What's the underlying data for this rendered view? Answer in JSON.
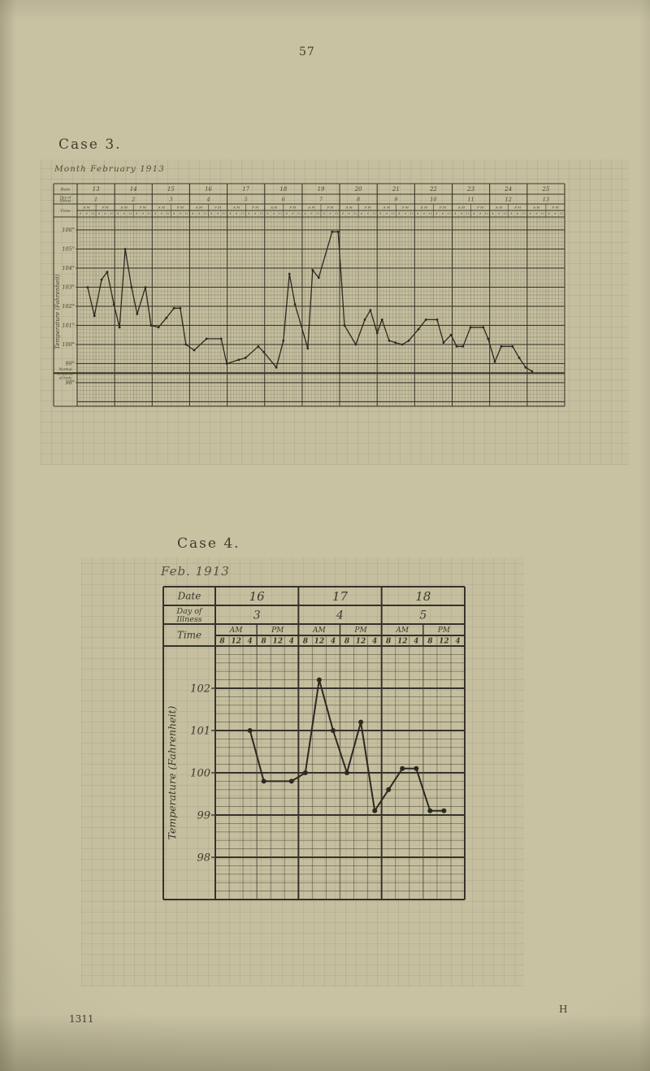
{
  "page": {
    "number": "57",
    "plate_id": "1311",
    "signature": "H"
  },
  "chart_data": [
    {
      "type": "line",
      "title": "Case 3.",
      "subtitle": "Month February 1913",
      "ylabel": "Temperature (Fahrenheit)",
      "unit": "deg F",
      "legend_position": "none",
      "grid": true,
      "header": {
        "date_label": "Date",
        "day_of_illness_label": [
          "Day of",
          "Illness"
        ],
        "time_label": "Time",
        "am": "A M",
        "pm": "P M"
      },
      "dates": [
        "13",
        "14",
        "15",
        "16",
        "17",
        "18",
        "19",
        "20",
        "21",
        "22",
        "23",
        "24",
        "25"
      ],
      "days_of_illness": [
        "1",
        "2",
        "3",
        "4",
        "5",
        "6",
        "7",
        "8",
        "9",
        "10",
        "11",
        "12",
        "13"
      ],
      "time_ticks": [
        "4",
        "8",
        "12",
        "4",
        "8",
        "12"
      ],
      "y_ticks": [
        {
          "v": 106,
          "label": "106°"
        },
        {
          "v": 105,
          "label": "105°"
        },
        {
          "v": 104,
          "label": "104°"
        },
        {
          "v": 103,
          "label": "103°"
        },
        {
          "v": 102,
          "label": "102°"
        },
        {
          "v": 101,
          "label": "101°"
        },
        {
          "v": 100,
          "label": "100°"
        },
        {
          "v": 99,
          "label": "99°"
        },
        {
          "v": 98,
          "label": "98°"
        }
      ],
      "ylim": [
        96.8,
        106.7
      ],
      "normal_line": {
        "value": 98.5,
        "label": [
          "Normal",
          "temperat.",
          "of body"
        ]
      },
      "points": [
        {
          "x": 13.28,
          "t": 103.0
        },
        {
          "x": 13.46,
          "t": 101.5
        },
        {
          "x": 13.65,
          "t": 103.4
        },
        {
          "x": 13.8,
          "t": 103.8
        },
        {
          "x": 13.98,
          "t": 102.1
        },
        {
          "x": 14.13,
          "t": 100.9
        },
        {
          "x": 14.28,
          "t": 105.0
        },
        {
          "x": 14.45,
          "t": 103.0
        },
        {
          "x": 14.6,
          "t": 101.6
        },
        {
          "x": 14.82,
          "t": 103.0
        },
        {
          "x": 14.97,
          "t": 101.0
        },
        {
          "x": 15.17,
          "t": 100.9
        },
        {
          "x": 15.38,
          "t": 101.4
        },
        {
          "x": 15.58,
          "t": 101.9
        },
        {
          "x": 15.75,
          "t": 101.9
        },
        {
          "x": 15.9,
          "t": 100.0
        },
        {
          "x": 16.12,
          "t": 99.7
        },
        {
          "x": 16.45,
          "t": 100.3
        },
        {
          "x": 16.84,
          "t": 100.3
        },
        {
          "x": 16.99,
          "t": 99.0
        },
        {
          "x": 17.31,
          "t": 99.2
        },
        {
          "x": 17.49,
          "t": 99.3
        },
        {
          "x": 17.83,
          "t": 99.9
        },
        {
          "x": 17.98,
          "t": 99.6
        },
        {
          "x": 18.31,
          "t": 98.8
        },
        {
          "x": 18.5,
          "t": 100.2
        },
        {
          "x": 18.66,
          "t": 103.7
        },
        {
          "x": 18.81,
          "t": 102.1
        },
        {
          "x": 19.15,
          "t": 99.8
        },
        {
          "x": 19.28,
          "t": 103.9
        },
        {
          "x": 19.44,
          "t": 103.5
        },
        {
          "x": 19.8,
          "t": 105.9
        },
        {
          "x": 19.96,
          "t": 105.9
        },
        {
          "x": 20.13,
          "t": 101.0
        },
        {
          "x": 20.43,
          "t": 100.0
        },
        {
          "x": 20.67,
          "t": 101.3
        },
        {
          "x": 20.82,
          "t": 101.8
        },
        {
          "x": 21.0,
          "t": 100.6
        },
        {
          "x": 21.13,
          "t": 101.3
        },
        {
          "x": 21.32,
          "t": 100.2
        },
        {
          "x": 21.49,
          "t": 100.1
        },
        {
          "x": 21.67,
          "t": 100.0
        },
        {
          "x": 21.84,
          "t": 100.2
        },
        {
          "x": 22.1,
          "t": 100.8
        },
        {
          "x": 22.3,
          "t": 101.3
        },
        {
          "x": 22.6,
          "t": 101.3
        },
        {
          "x": 22.77,
          "t": 100.1
        },
        {
          "x": 22.97,
          "t": 100.5
        },
        {
          "x": 23.12,
          "t": 99.9
        },
        {
          "x": 23.29,
          "t": 99.9
        },
        {
          "x": 23.49,
          "t": 100.9
        },
        {
          "x": 23.83,
          "t": 100.9
        },
        {
          "x": 23.96,
          "t": 100.3
        },
        {
          "x": 24.14,
          "t": 99.1
        },
        {
          "x": 24.31,
          "t": 99.9
        },
        {
          "x": 24.61,
          "t": 99.9
        },
        {
          "x": 24.79,
          "t": 99.3
        },
        {
          "x": 24.96,
          "t": 98.8
        },
        {
          "x": 25.13,
          "t": 98.6
        }
      ]
    },
    {
      "type": "line",
      "title": "Case 4.",
      "subtitle": "Feb. 1913",
      "ylabel": "Temperature (Fahrenheit)",
      "unit": "deg F",
      "legend_position": "none",
      "grid": true,
      "header": {
        "date_label": "Date",
        "day_of_illness_label": [
          "Day of",
          "Illness"
        ],
        "time_label": "Time",
        "am": "AM",
        "pm": "PM"
      },
      "dates": [
        "16",
        "17",
        "18"
      ],
      "days_of_illness": [
        "3",
        "4",
        "5"
      ],
      "time_ticks": [
        "8",
        "12",
        "4",
        "8",
        "12",
        "4"
      ],
      "y_ticks": [
        {
          "v": 102,
          "label": "102"
        },
        {
          "v": 101,
          "label": "101"
        },
        {
          "v": 100,
          "label": "100"
        },
        {
          "v": 99,
          "label": "99"
        },
        {
          "v": 98,
          "label": "98"
        }
      ],
      "ylim": [
        97.0,
        103.0
      ],
      "points": [
        {
          "x": 16.417,
          "t": 101.0
        },
        {
          "x": 16.583,
          "t": 99.8
        },
        {
          "x": 16.917,
          "t": 99.8
        },
        {
          "x": 17.083,
          "t": 100.0
        },
        {
          "x": 17.25,
          "t": 102.2
        },
        {
          "x": 17.417,
          "t": 101.0
        },
        {
          "x": 17.583,
          "t": 100.0
        },
        {
          "x": 17.75,
          "t": 101.2
        },
        {
          "x": 17.917,
          "t": 99.1
        },
        {
          "x": 18.083,
          "t": 99.6
        },
        {
          "x": 18.25,
          "t": 100.1
        },
        {
          "x": 18.417,
          "t": 100.1
        },
        {
          "x": 18.583,
          "t": 99.1
        },
        {
          "x": 18.75,
          "t": 99.1
        }
      ]
    }
  ]
}
